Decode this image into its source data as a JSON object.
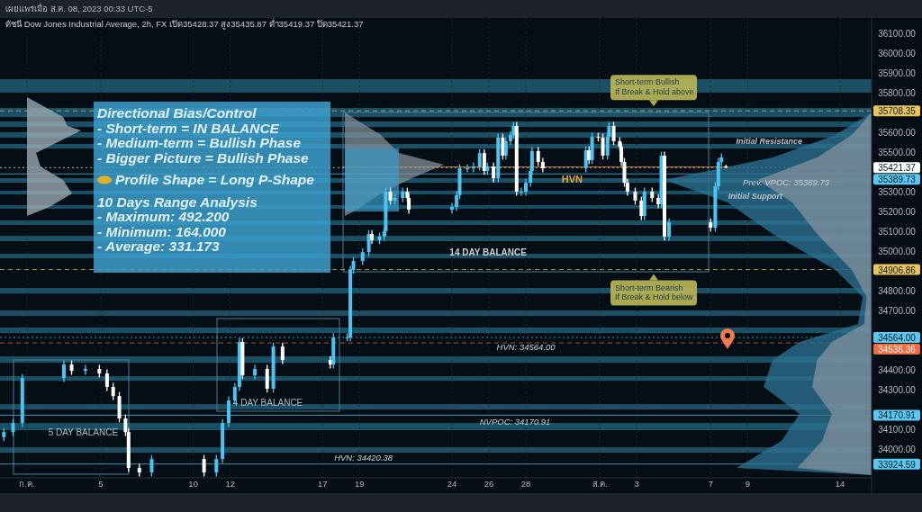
{
  "chart_data": {
    "type": "candlestick",
    "title": "ดัชนี Dow Jones Industrial Average, 2h, FX  เปิด35428.37  สูง35435.87  ต่ำ35419.37  ปิด35421.37",
    "subtitle": "เผยแพร่เมื่อ ส.ค. 08, 2023 00:33 UTC-5",
    "xlim": [
      "2023-06-29T13:00",
      "2023-08-15T17:00"
    ],
    "ylim": [
      33855,
      36177
    ],
    "grid": "x",
    "xticks": [
      {
        "value": "2023-07",
        "label": "ก.ค."
      },
      {
        "value": "2023-07-05",
        "label": "5"
      },
      {
        "value": "2023-07-10",
        "label": "10"
      },
      {
        "value": "2023-07-12",
        "label": "12"
      },
      {
        "value": "2023-07-17",
        "label": "17"
      },
      {
        "value": "2023-07-19",
        "label": "19"
      },
      {
        "value": "2023-07-24",
        "label": "24"
      },
      {
        "value": "2023-07-26",
        "label": "26"
      },
      {
        "value": "2023-07-28",
        "label": "28"
      },
      {
        "value": "2023-08",
        "label": "ส.ค."
      },
      {
        "value": "2023-08-03",
        "label": "3"
      },
      {
        "value": "2023-08-07",
        "label": "7"
      },
      {
        "value": "2023-08-09",
        "label": "9"
      },
      {
        "value": "2023-08-14",
        "label": "14"
      }
    ],
    "yticks": [
      {
        "value": 34000,
        "label": "34000.00"
      },
      {
        "value": 34100,
        "label": "34100.00"
      },
      {
        "value": 34300,
        "label": "34300.00"
      },
      {
        "value": 34400,
        "label": "34400.00"
      },
      {
        "value": 34700,
        "label": "34700.00"
      },
      {
        "value": 34800,
        "label": "34800.00"
      },
      {
        "value": 35000,
        "label": "35000.00"
      },
      {
        "value": 35100,
        "label": "35100.00"
      },
      {
        "value": 35200,
        "label": "35200.00"
      },
      {
        "value": 35300,
        "label": "35300.00"
      },
      {
        "value": 35500,
        "label": "35500.00"
      },
      {
        "value": 35600,
        "label": "35600.00"
      },
      {
        "value": 35800,
        "label": "35800.00"
      },
      {
        "value": 35900,
        "label": "35900.00"
      },
      {
        "value": 36000,
        "label": "36000.00"
      },
      {
        "value": 36100,
        "label": "36100.00"
      }
    ],
    "series": [
      {
        "colors": [
          "#4cc3ee",
          "#4cc3ee",
          "#4cc3ee",
          "#4cc3ee",
          "#ffffff",
          "#4cc3ee",
          "#ffffff",
          "#ffffff",
          "#ffffff",
          "#ffffff",
          "#ffffff",
          "#ffffff",
          "#ffffff",
          "#4cc3ee",
          "#ffffff",
          "#4cc3ee",
          "#4cc3ee",
          "#4cc3ee",
          "#4cc3ee",
          "#4cc3ee",
          "#ffffff",
          "#4cc3ee",
          "#ffffff",
          "#4cc3ee",
          "#ffffff",
          "#ffffff",
          "#4cc3ee",
          "#4cc3ee",
          "#4cc3ee",
          "#4cc3ee",
          "#4cc3ee",
          "#4cc3ee",
          "#ffffff",
          "#4cc3ee",
          "#4cc3ee",
          "#4cc3ee",
          "#ffffff",
          "#4cc3ee",
          "#4cc3ee",
          "#ffffff",
          "#ffffff",
          "#4cc3ee",
          "#4cc3ee",
          "#4cc3ee",
          "#4cc3ee",
          "#4cc3ee",
          "#4cc3ee",
          "#ffffff",
          "#4cc3ee",
          "#ffffff",
          "#4cc3ee",
          "#ffffff",
          "#4cc3ee",
          "#4cc3ee",
          "#4cc3ee",
          "#ffffff",
          "#4cc3ee",
          "#4cc3ee",
          "#4cc3ee",
          "#4cc3ee",
          "#ffffff",
          "#ffffff",
          "#4cc3ee",
          "#ffffff",
          "#4cc3ee",
          "#ffffff",
          "#ffffff",
          "#4cc3ee",
          "#4cc3ee",
          "#ffffff",
          "#ffffff",
          "#ffffff",
          "#ffffff",
          "#ffffff",
          "#ffffff",
          "#ffffff",
          "#4cc3ee",
          "#ffffff",
          "#ffffff",
          "#4cc3ee",
          "#ffffff",
          "#4cc3ee",
          "#ffffff",
          "#4cc3ee",
          "#4cc3ee",
          "#4cc3ee",
          "#ffffff"
        ],
        "x": [
          "2023-06-29T18:00",
          "2023-06-30T06:00",
          "2023-06-30T18:00",
          "2023-07-03T00:00",
          "2023-07-03T10:00",
          "2023-07-04T04:00",
          "2023-07-04T22:00",
          "2023-07-05T08:00",
          "2023-07-05T16:00",
          "2023-07-06T00:00",
          "2023-07-06T08:00",
          "2023-07-06T12:00",
          "2023-07-07T02:00",
          "2023-07-07T18:00",
          "2023-07-10T14:00",
          "2023-07-11T06:00",
          "2023-07-11T14:00",
          "2023-07-11T22:00",
          "2023-07-12T06:00",
          "2023-07-12T12:00",
          "2023-07-12T16:00",
          "2023-07-13T08:00",
          "2023-07-14T00:00",
          "2023-07-14T08:00",
          "2023-07-14T20:00",
          "2023-07-17T10:00",
          "2023-07-17T14:00",
          "2023-07-18T08:00",
          "2023-07-18T12:00",
          "2023-07-18T16:00",
          "2023-07-19T04:00",
          "2023-07-19T12:00",
          "2023-07-19T16:00",
          "2023-07-20T02:00",
          "2023-07-20T08:00",
          "2023-07-20T10:00",
          "2023-07-20T16:00",
          "2023-07-20T22:00",
          "2023-07-21T08:00",
          "2023-07-21T14:00",
          "2023-07-21T16:00",
          "2023-07-24T00:00",
          "2023-07-24T06:00",
          "2023-07-24T10:00",
          "2023-07-24T20:00",
          "2023-07-25T04:00",
          "2023-07-25T12:00",
          "2023-07-25T18:00",
          "2023-07-25T22:00",
          "2023-07-26T06:00",
          "2023-07-26T12:00",
          "2023-07-26T18:00",
          "2023-07-26T22:00",
          "2023-07-27T04:00",
          "2023-07-27T08:00",
          "2023-07-27T12:00",
          "2023-07-27T18:00",
          "2023-07-28T00:00",
          "2023-07-28T06:00",
          "2023-07-28T08:00",
          "2023-07-28T16:00",
          "2023-07-28T22:00",
          "2023-07-31T06:00",
          "2023-07-31T10:00",
          "2023-07-31T14:00",
          "2023-07-31T22:00",
          "2023-08-01T04:00",
          "2023-08-01T10:00",
          "2023-08-01T12:00",
          "2023-08-01T18:00",
          "2023-08-02T02:00",
          "2023-08-02T04:00",
          "2023-08-02T08:00",
          "2023-08-02T12:00",
          "2023-08-02T22:00",
          "2023-08-03T06:00",
          "2023-08-03T10:00",
          "2023-08-03T20:00",
          "2023-08-04T04:00",
          "2023-08-04T08:00",
          "2023-08-04T12:00",
          "2023-08-04T18:00",
          "2023-08-07T00:00",
          "2023-08-07T06:00",
          "2023-08-07T10:00",
          "2023-08-07T14:00",
          "2023-08-07T20:00"
        ],
        "ohlc": [
          [
            34060,
            34106,
            34040,
            34086
          ],
          [
            34086,
            34152,
            34066,
            34132
          ],
          [
            34132,
            34379,
            34112,
            34359
          ],
          [
            34359,
            34447,
            34339,
            34427
          ],
          [
            34427,
            34447,
            34375,
            34395
          ],
          [
            34395,
            34425,
            34375,
            34405
          ],
          [
            34405,
            34425,
            34362,
            34382
          ],
          [
            34382,
            34402,
            34294,
            34314
          ],
          [
            34314,
            34334,
            34248,
            34268
          ],
          [
            34268,
            34288,
            34135,
            34155
          ],
          [
            34155,
            34175,
            34066,
            34086
          ],
          [
            34086,
            34106,
            33885,
            33905
          ],
          [
            33905,
            33925,
            33862,
            33882
          ],
          [
            33882,
            33970,
            33862,
            33950
          ],
          [
            33950,
            33970,
            33862,
            33882
          ],
          [
            33882,
            33970,
            33862,
            33950
          ],
          [
            33950,
            34152,
            33930,
            34132
          ],
          [
            34132,
            34265,
            34112,
            34245
          ],
          [
            34245,
            34334,
            34225,
            34314
          ],
          [
            34314,
            34561,
            34294,
            34541
          ],
          [
            34541,
            34561,
            34353,
            34373
          ],
          [
            34373,
            34425,
            34353,
            34405
          ],
          [
            34405,
            34425,
            34285,
            34305
          ],
          [
            34305,
            34538,
            34285,
            34518
          ],
          [
            34518,
            34538,
            34430,
            34450
          ],
          [
            34450,
            34470,
            34407,
            34427
          ],
          [
            34427,
            34584,
            34407,
            34564
          ],
          [
            34564,
            34584,
            34544,
            34564
          ],
          [
            34564,
            34925,
            34544,
            34905
          ],
          [
            34905,
            34970,
            34885,
            34950
          ],
          [
            34950,
            35015,
            34930,
            34995
          ],
          [
            34995,
            35106,
            34975,
            35086
          ],
          [
            35086,
            35106,
            35035,
            35055
          ],
          [
            35055,
            35093,
            35035,
            35073
          ],
          [
            35073,
            35120,
            35053,
            35100
          ],
          [
            35100,
            35320,
            35080,
            35300
          ],
          [
            35300,
            35320,
            35235,
            35255
          ],
          [
            35255,
            35288,
            35235,
            35268
          ],
          [
            35268,
            35320,
            35248,
            35300
          ],
          [
            35300,
            35320,
            35248,
            35268
          ],
          [
            35268,
            35288,
            35189,
            35209
          ],
          [
            35209,
            35243,
            35189,
            35223
          ],
          [
            35223,
            35302,
            35203,
            35282
          ],
          [
            35282,
            35438,
            35262,
            35418
          ],
          [
            35418,
            35438,
            35398,
            35418
          ],
          [
            35418,
            35447,
            35398,
            35427
          ],
          [
            35427,
            35515,
            35407,
            35495
          ],
          [
            35495,
            35515,
            35385,
            35405
          ],
          [
            35405,
            35447,
            35385,
            35427
          ],
          [
            35427,
            35447,
            35348,
            35368
          ],
          [
            35368,
            35593,
            35348,
            35573
          ],
          [
            35573,
            35593,
            35462,
            35482
          ],
          [
            35482,
            35575,
            35462,
            35555
          ],
          [
            35555,
            35606,
            35535,
            35586
          ],
          [
            35586,
            35652,
            35566,
            35632
          ],
          [
            35632,
            35652,
            35280,
            35300
          ],
          [
            35300,
            35320,
            35280,
            35300
          ],
          [
            35300,
            35365,
            35280,
            35345
          ],
          [
            35345,
            35425,
            35325,
            35405
          ],
          [
            35405,
            35525,
            35385,
            35505
          ],
          [
            35505,
            35525,
            35430,
            35450
          ],
          [
            35450,
            35470,
            35398,
            35418
          ],
          [
            35418,
            35529,
            35398,
            35509
          ],
          [
            35509,
            35529,
            35439,
            35459
          ],
          [
            35459,
            35597,
            35439,
            35577
          ],
          [
            35577,
            35597,
            35553,
            35573
          ],
          [
            35573,
            35593,
            35462,
            35482
          ],
          [
            35482,
            35597,
            35462,
            35577
          ],
          [
            35577,
            35652,
            35557,
            35632
          ],
          [
            35632,
            35652,
            35535,
            35555
          ],
          [
            35555,
            35575,
            35507,
            35527
          ],
          [
            35527,
            35547,
            35430,
            35450
          ],
          [
            35450,
            35470,
            35325,
            35345
          ],
          [
            35345,
            35365,
            35280,
            35300
          ],
          [
            35300,
            35320,
            35235,
            35255
          ],
          [
            35255,
            35275,
            35157,
            35177
          ],
          [
            35177,
            35320,
            35157,
            35300
          ],
          [
            35300,
            35320,
            35248,
            35268
          ],
          [
            35268,
            35288,
            35216,
            35236
          ],
          [
            35236,
            35502,
            35216,
            35482
          ],
          [
            35482,
            35502,
            35053,
            35073
          ],
          [
            35073,
            35165,
            35053,
            35145
          ],
          [
            35145,
            35165,
            35098,
            35118
          ],
          [
            35118,
            35347,
            35098,
            35327
          ],
          [
            35327,
            35470,
            35307,
            35450
          ],
          [
            35450,
            35493,
            35430,
            35473
          ],
          [
            35428.37,
            35435.87,
            35419.37,
            35421.37
          ]
        ]
      },
      {
        "type": "line",
        "color": "#c07a20",
        "x": [
          "2023-07-18T02:00",
          "2023-08-07T22:00"
        ],
        "values": [
          35425,
          35425
        ]
      }
    ],
    "ref_lines": [
      {
        "axis": "y",
        "value": 35708.35,
        "label": "35708.35",
        "color": "#e8c45a",
        "line_style": "dashed"
      },
      {
        "axis": "y",
        "value": 35421.37,
        "label": "35421.37",
        "color": "#ffffff",
        "line_style": "dotted"
      },
      {
        "axis": "y",
        "value": 35389.73,
        "label": "35389.73",
        "color": "#5ac8f0",
        "line_style": "solid"
      },
      {
        "axis": "y",
        "value": 34906.86,
        "label": "34906.86",
        "color": "#e8c45a",
        "line_style": "dashed"
      },
      {
        "axis": "y",
        "value": 34564.0,
        "label": "34564.00",
        "color": "#5ac8f0",
        "line_style": "dotted"
      },
      {
        "axis": "y",
        "value": 34536.36,
        "label": "34536.36",
        "color": "#f26a3d",
        "line_style": "dashed"
      },
      {
        "axis": "y",
        "value": 34170.91,
        "label": "34170.91",
        "color": "#5ac8f0",
        "line_style": "solid"
      },
      {
        "axis": "y",
        "value": 33924.59,
        "label": "33924.59",
        "color": "#5ac8f0",
        "line_style": "solid"
      }
    ],
    "bands": [
      {
        "axis": "y",
        "from": 35800,
        "to": 35868
      },
      {
        "axis": "y",
        "from": 35677,
        "to": 35723
      },
      {
        "axis": "y",
        "from": 35627,
        "to": 35655
      },
      {
        "axis": "y",
        "from": 35573,
        "to": 35600
      },
      {
        "axis": "y",
        "from": 35518,
        "to": 35541
      },
      {
        "axis": "y",
        "from": 35345,
        "to": 35368
      },
      {
        "axis": "y",
        "from": 35286,
        "to": 35305
      },
      {
        "axis": "y",
        "from": 35214,
        "to": 35232
      },
      {
        "axis": "y",
        "from": 35132,
        "to": 35155
      },
      {
        "axis": "y",
        "from": 35050,
        "to": 35077
      },
      {
        "axis": "y",
        "from": 34964,
        "to": 34986
      },
      {
        "axis": "y",
        "from": 34786,
        "to": 34814
      },
      {
        "axis": "y",
        "from": 34673,
        "to": 34700
      },
      {
        "axis": "y",
        "from": 34586,
        "to": 34614
      },
      {
        "axis": "y",
        "from": 34436,
        "to": 34468
      },
      {
        "axis": "y",
        "from": 34345,
        "to": 34368
      },
      {
        "axis": "y",
        "from": 34200,
        "to": 34227
      },
      {
        "axis": "y",
        "from": 34095,
        "to": 34132
      },
      {
        "axis": "y",
        "from": 33982,
        "to": 34009
      }
    ],
    "annotations": [
      {
        "text": "HVN",
        "x": "2023-07-30T12:00",
        "y": 35425
      },
      {
        "text": "Initial Resistance",
        "x": "2023-08-10T04:00",
        "y": 35559
      },
      {
        "text": "Initial Support",
        "x": "2023-08-09T10:00",
        "y": 35282
      },
      {
        "text": "Prev. VPOC: 35389.73",
        "x": "2023-08-11T02:00",
        "y": 35389.73
      },
      {
        "text": "HVN: 34564.00",
        "x": "2023-07-28T00:00",
        "y": 34564.0
      },
      {
        "text": "NVPOC: 34170.91",
        "x": "2023-07-27T10:00",
        "y": 34170.91
      },
      {
        "text": "HVN: 34420.38",
        "x": "2023-07-19T05:00",
        "y": 33924.59
      },
      {
        "text": "5 DAY BALANCE",
        "x": "2023-07-04T01:00",
        "y": 34086
      },
      {
        "text": "4 DAY BALANCE",
        "x": "2023-07-14T01:00",
        "y": 34236
      },
      {
        "text": "14 DAY BALANCE",
        "x": "2023-07-25T23:00",
        "y": 34995
      },
      {
        "text": "Short-term Bullish\nIf Break & Hold above",
        "x": "2023-08-03T22:00",
        "y": 35708.35
      },
      {
        "text": "Short-term Bearish\nIf Break & Hold below",
        "x": "2023-08-03T22:00",
        "y": 34906.86
      },
      "Directional Bias/Control",
      "- Short-term = IN BALANCE",
      "- Medium-term = Bullish Phase",
      "- Bigger Picture = Bullish Phase",
      "Profile Shape = Long P-Shape",
      "10 Days Range Analysis",
      "- Maximum: 492.200",
      "- Minimum: 164.000",
      "- Average: 331.173"
    ]
  }
}
